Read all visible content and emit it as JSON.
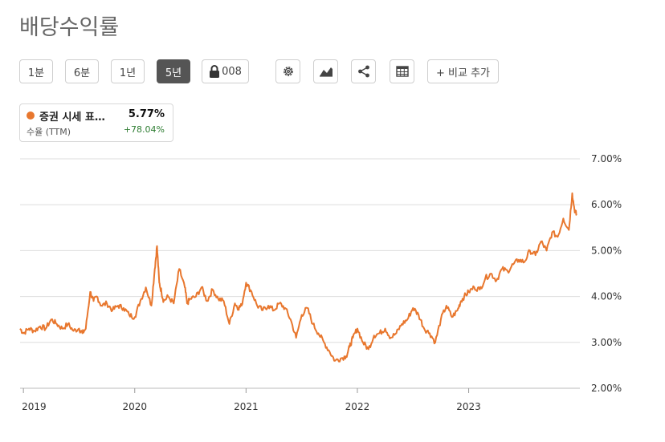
{
  "page_title": "배당수익률",
  "toolbar": {
    "range_buttons": [
      {
        "label": "1분",
        "active": false
      },
      {
        "label": "6분",
        "active": false
      },
      {
        "label": "1년",
        "active": false
      },
      {
        "label": "5년",
        "active": true
      }
    ],
    "lock_label": "008",
    "compare_label": "+ 비교 추가",
    "icons": [
      "gear-icon",
      "chart-type-icon",
      "share-icon",
      "table-icon"
    ]
  },
  "legend": {
    "series_name": "증권 시세 표…",
    "subtitle": "수율 (TTM)",
    "value": "5.77%",
    "change": "+78.04%",
    "color": "#e8772e",
    "change_color": "#2e7d32"
  },
  "chart_data": {
    "type": "line",
    "title": "",
    "xlabel": "",
    "ylabel": "",
    "x_ticks": [
      "2019",
      "2020",
      "2021",
      "2022",
      "2023"
    ],
    "y_ticks": [
      "2.00%",
      "3.00%",
      "4.00%",
      "5.00%",
      "6.00%",
      "7.00%"
    ],
    "ylim": [
      2.0,
      7.0
    ],
    "xlim": [
      2018.97,
      2023.97
    ],
    "grid": true,
    "series": [
      {
        "color": "#e8772e",
        "x": [
          2018.97,
          2019.0,
          2019.05,
          2019.1,
          2019.15,
          2019.2,
          2019.25,
          2019.3,
          2019.35,
          2019.4,
          2019.45,
          2019.5,
          2019.53,
          2019.56,
          2019.6,
          2019.63,
          2019.66,
          2019.7,
          2019.75,
          2019.8,
          2019.85,
          2019.9,
          2019.95,
          2020.0,
          2020.05,
          2020.1,
          2020.15,
          2020.18,
          2020.2,
          2020.22,
          2020.24,
          2020.26,
          2020.3,
          2020.35,
          2020.4,
          2020.45,
          2020.47,
          2020.5,
          2020.55,
          2020.6,
          2020.65,
          2020.7,
          2020.75,
          2020.8,
          2020.85,
          2020.9,
          2020.93,
          2020.96,
          2021.0,
          2021.05,
          2021.1,
          2021.15,
          2021.2,
          2021.25,
          2021.3,
          2021.35,
          2021.4,
          2021.45,
          2021.5,
          2021.55,
          2021.6,
          2021.65,
          2021.7,
          2021.75,
          2021.8,
          2021.85,
          2021.9,
          2021.93,
          2021.96,
          2022.0,
          2022.05,
          2022.1,
          2022.15,
          2022.2,
          2022.25,
          2022.3,
          2022.35,
          2022.4,
          2022.45,
          2022.5,
          2022.55,
          2022.6,
          2022.65,
          2022.7,
          2022.75,
          2022.8,
          2022.85,
          2022.9,
          2022.93,
          2022.96,
          2023.0,
          2023.05,
          2023.1,
          2023.15,
          2023.2,
          2023.25,
          2023.3,
          2023.35,
          2023.4,
          2023.45,
          2023.5,
          2023.55,
          2023.6,
          2023.65,
          2023.7,
          2023.75,
          2023.8,
          2023.85,
          2023.9,
          2023.93,
          2023.95,
          2023.97
        ],
        "values": [
          3.3,
          3.2,
          3.3,
          3.25,
          3.35,
          3.3,
          3.5,
          3.4,
          3.3,
          3.4,
          3.25,
          3.3,
          3.2,
          3.3,
          4.1,
          3.9,
          4.0,
          3.8,
          3.85,
          3.7,
          3.8,
          3.75,
          3.6,
          3.55,
          3.9,
          4.2,
          3.8,
          4.6,
          5.1,
          4.3,
          4.1,
          3.9,
          4.0,
          3.85,
          4.6,
          4.2,
          3.85,
          3.95,
          4.0,
          4.2,
          3.9,
          4.15,
          3.95,
          3.9,
          3.4,
          3.85,
          3.75,
          3.8,
          4.3,
          4.1,
          3.8,
          3.7,
          3.8,
          3.7,
          3.85,
          3.75,
          3.5,
          3.1,
          3.6,
          3.75,
          3.4,
          3.2,
          3.0,
          2.8,
          2.6,
          2.65,
          2.7,
          2.9,
          3.1,
          3.3,
          3.0,
          2.85,
          3.15,
          3.2,
          3.3,
          3.1,
          3.2,
          3.4,
          3.5,
          3.75,
          3.6,
          3.3,
          3.2,
          3.0,
          3.5,
          3.8,
          3.55,
          3.7,
          3.9,
          4.0,
          4.1,
          4.2,
          4.15,
          4.4,
          4.5,
          4.35,
          4.6,
          4.55,
          4.7,
          4.8,
          4.75,
          5.0,
          4.9,
          5.2,
          5.0,
          5.4,
          5.3,
          5.7,
          5.45,
          6.25,
          5.9,
          5.77
        ]
      }
    ]
  }
}
